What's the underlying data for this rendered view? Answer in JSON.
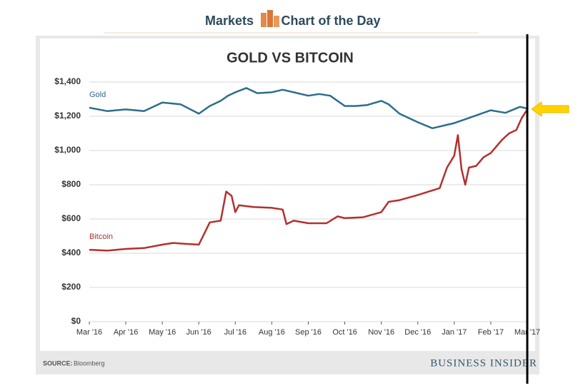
{
  "header": {
    "left": "Markets",
    "right": "Chart of the Day"
  },
  "chart_data": {
    "type": "line",
    "title": "GOLD VS BITCOIN",
    "xlim": [
      0,
      12
    ],
    "xticks": [
      {
        "value": 0,
        "label": "Mar '16"
      },
      {
        "value": 1,
        "label": "Apr '16"
      },
      {
        "value": 2,
        "label": "May '16"
      },
      {
        "value": 3,
        "label": "Jun '16"
      },
      {
        "value": 4,
        "label": "Jul '16"
      },
      {
        "value": 5,
        "label": "Aug '16"
      },
      {
        "value": 6,
        "label": "Sep '16"
      },
      {
        "value": 7,
        "label": "Oct '16"
      },
      {
        "value": 8,
        "label": "Nov '16"
      },
      {
        "value": 9,
        "label": "Dec '16"
      },
      {
        "value": 10,
        "label": "Jan '17"
      },
      {
        "value": 11,
        "label": "Feb '17"
      },
      {
        "value": 12,
        "label": "Mar '17"
      }
    ],
    "ylim": [
      0,
      1400
    ],
    "yticks": [
      {
        "value": 0,
        "label": "$0"
      },
      {
        "value": 200,
        "label": "$200"
      },
      {
        "value": 400,
        "label": "$400"
      },
      {
        "value": 600,
        "label": "$600"
      },
      {
        "value": 800,
        "label": "$800"
      },
      {
        "value": 1000,
        "label": "$1,000"
      },
      {
        "value": 1200,
        "label": "$1,200"
      },
      {
        "value": 1400,
        "label": "$1,400"
      }
    ],
    "grid": true,
    "series": [
      {
        "name": "Gold",
        "color": "#2b6e8c",
        "x": [
          0,
          0.5,
          1,
          1.5,
          2,
          2.5,
          3,
          3.3,
          3.6,
          3.8,
          4,
          4.3,
          4.6,
          5,
          5.3,
          5.6,
          6,
          6.3,
          6.6,
          7,
          7.3,
          7.6,
          8,
          8.2,
          8.5,
          9,
          9.4,
          9.8,
          10,
          10.4,
          10.8,
          11,
          11.4,
          11.8,
          12
        ],
        "values": [
          1250,
          1230,
          1240,
          1230,
          1280,
          1270,
          1215,
          1260,
          1290,
          1320,
          1340,
          1365,
          1335,
          1340,
          1355,
          1340,
          1320,
          1330,
          1320,
          1260,
          1260,
          1265,
          1290,
          1270,
          1215,
          1165,
          1130,
          1150,
          1160,
          1190,
          1220,
          1235,
          1220,
          1255,
          1245
        ]
      },
      {
        "name": "Bitcoin",
        "color": "#b3302e",
        "x": [
          0,
          0.5,
          1,
          1.5,
          2,
          2.3,
          2.6,
          3,
          3.3,
          3.6,
          3.75,
          3.9,
          4,
          4.1,
          4.5,
          5,
          5.3,
          5.4,
          5.6,
          6,
          6.5,
          6.8,
          7,
          7.5,
          8,
          8.2,
          8.5,
          9,
          9.3,
          9.6,
          9.8,
          10,
          10.1,
          10.2,
          10.3,
          10.4,
          10.6,
          10.8,
          11,
          11.3,
          11.5,
          11.7,
          11.85,
          12
        ],
        "values": [
          420,
          415,
          425,
          430,
          450,
          460,
          455,
          450,
          580,
          590,
          760,
          735,
          640,
          680,
          670,
          665,
          655,
          570,
          590,
          575,
          575,
          615,
          605,
          610,
          640,
          700,
          710,
          740,
          760,
          780,
          900,
          970,
          1090,
          890,
          800,
          900,
          910,
          960,
          985,
          1060,
          1100,
          1120,
          1190,
          1240
        ]
      }
    ]
  },
  "footer": {
    "source_label": "SOURCE:",
    "source": "Bloomberg",
    "brand": "BUSINESS INSIDER"
  }
}
